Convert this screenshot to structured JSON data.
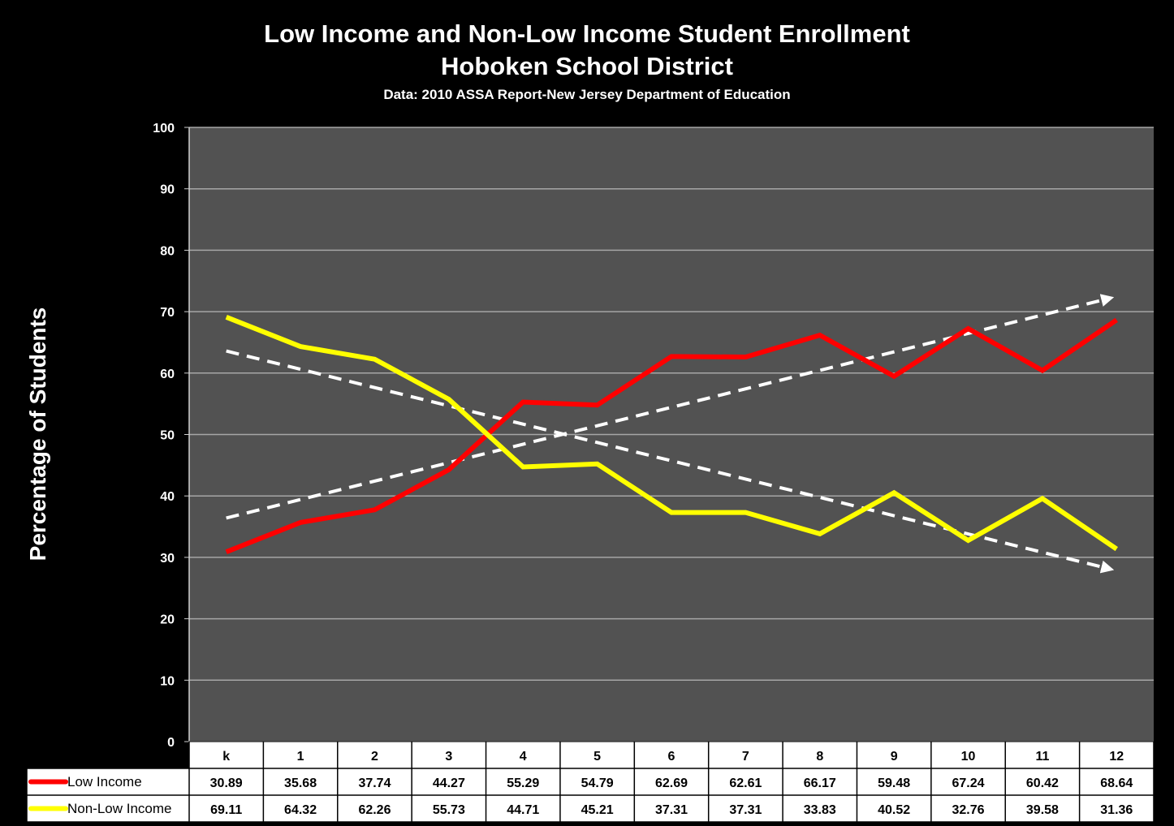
{
  "chart_data": {
    "type": "line",
    "title": "Low Income and Non-Low Income Student Enrollment",
    "subtitle": "Hoboken School District",
    "source": "Data: 2010 ASSA Report-New Jersey Department of Education",
    "xlabel": "",
    "ylabel": "Percentage of Students",
    "ylim": [
      0,
      100
    ],
    "yticks": [
      0,
      10,
      20,
      30,
      40,
      50,
      60,
      70,
      80,
      90,
      100
    ],
    "grid": true,
    "legend": "data-table",
    "categories": [
      "k",
      "1",
      "2",
      "3",
      "4",
      "5",
      "6",
      "7",
      "8",
      "9",
      "10",
      "11",
      "12"
    ],
    "series": [
      {
        "name": "Low Income",
        "color": "#ff0000",
        "values": [
          30.89,
          35.68,
          37.74,
          44.27,
          55.29,
          54.79,
          62.69,
          62.61,
          66.17,
          59.48,
          67.24,
          60.42,
          68.64
        ],
        "value_labels": [
          "30.89",
          "35.68",
          "37.74",
          "44.27",
          "55.29",
          "54.79",
          "62.69",
          "62.61",
          "66.17",
          "59.48",
          "67.24",
          "60.42",
          "68.64"
        ],
        "trend": [
          36.4,
          72.0
        ],
        "trend_color": "#ffffff"
      },
      {
        "name": "Non-Low Income",
        "color": "#ffff00",
        "values": [
          69.11,
          64.32,
          62.26,
          55.73,
          44.71,
          45.21,
          37.31,
          37.31,
          33.83,
          40.52,
          32.76,
          39.58,
          31.36
        ],
        "value_labels": [
          "69.11",
          "64.32",
          "62.26",
          "55.73",
          "44.71",
          "45.21",
          "37.31",
          "37.31",
          "33.83",
          "40.52",
          "32.76",
          "39.58",
          "31.36"
        ],
        "trend": [
          63.6,
          28.3
        ],
        "trend_color": "#ffffff"
      }
    ]
  }
}
